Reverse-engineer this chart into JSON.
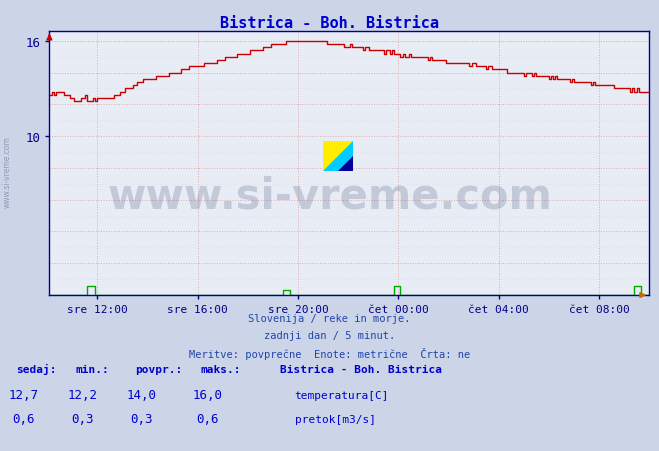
{
  "title": "Bistrica - Boh. Bistrica",
  "title_color": "#0000cc",
  "bg_color": "#ccd5e8",
  "plot_bg_color": "#e8ecf5",
  "grid_color": "#aaaacc",
  "axis_color": "#000088",
  "tick_color": "#000088",
  "watermark_text": "www.si-vreme.com",
  "watermark_color": "#1a3060",
  "watermark_alpha": 0.18,
  "subtitle_lines": [
    "Slovenija / reke in morje.",
    "zadnji dan / 5 minut.",
    "Meritve: povprečne  Enote: metrične  Črta: ne"
  ],
  "subtitle_color": "#2244aa",
  "legend_title": "Bistrica - Boh. Bistrica",
  "legend_color": "#0000cc",
  "temp_color": "#cc0000",
  "flow_color": "#00aa00",
  "temp_label": "temperatura[C]",
  "flow_label": "pretok[m3/s]",
  "ylim": [
    0,
    16.64
  ],
  "ytick_positions": [
    10,
    16
  ],
  "ytick_labels": [
    "10",
    "16"
  ],
  "xlim": [
    0,
    287
  ],
  "xtick_positions": [
    23,
    71,
    119,
    167,
    215,
    263
  ],
  "xtick_labels": [
    "sre 12:00",
    "sre 16:00",
    "sre 20:00",
    "čet 00:00",
    "čet 04:00",
    "čet 08:00"
  ],
  "footer_row1": [
    "12,7",
    "12,2",
    "14,0",
    "16,0"
  ],
  "footer_row2": [
    "0,6",
    "0,3",
    "0,3",
    "0,6"
  ],
  "footer_headers": [
    "sedaj:",
    "min.:",
    "povpr.:",
    "maks.:"
  ]
}
